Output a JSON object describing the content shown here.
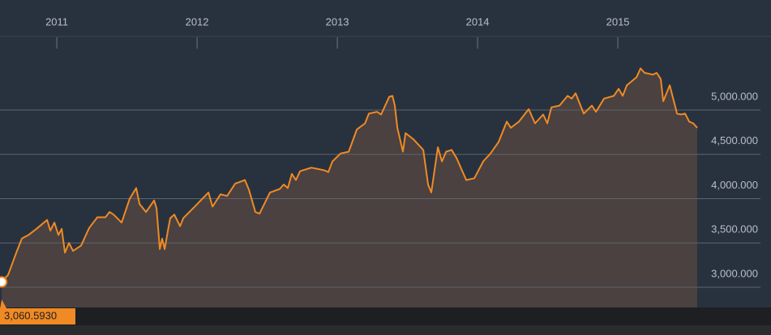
{
  "chart_data": {
    "type": "area",
    "x": [
      2010.607,
      2010.653,
      2010.711,
      2010.751,
      2010.798,
      2010.855,
      2010.931,
      2010.954,
      2010.983,
      2011.012,
      2011.035,
      2011.058,
      2011.087,
      2011.116,
      2011.173,
      2011.231,
      2011.289,
      2011.347,
      2011.376,
      2011.405,
      2011.462,
      2011.52,
      2011.566,
      2011.59,
      2011.636,
      2011.694,
      2011.711,
      2011.734,
      2011.751,
      2011.769,
      2011.792,
      2011.809,
      2011.838,
      2011.879,
      2011.902,
      2011.983,
      2012.081,
      2012.11,
      2012.168,
      2012.214,
      2012.272,
      2012.341,
      2012.37,
      2012.416,
      2012.445,
      2012.52,
      2012.59,
      2012.618,
      2012.647,
      2012.676,
      2012.705,
      2012.734,
      2012.815,
      2012.908,
      2012.936,
      2012.965,
      2013.023,
      2013.081,
      2013.139,
      2013.197,
      2013.225,
      2013.283,
      2013.312,
      2013.37,
      2013.393,
      2013.41,
      2013.428,
      2013.468,
      2013.486,
      2013.543,
      2013.613,
      2013.647,
      2013.67,
      2013.717,
      2013.746,
      2013.775,
      2013.815,
      2013.85,
      2013.919,
      2013.977,
      2014.04,
      2014.092,
      2014.15,
      2014.208,
      2014.237,
      2014.295,
      2014.364,
      2014.41,
      2014.468,
      2014.497,
      2014.526,
      2014.584,
      2014.642,
      2014.671,
      2014.699,
      2014.757,
      2014.815,
      2014.844,
      2014.902,
      2014.971,
      2015.006,
      2015.035,
      2015.064,
      2015.133,
      2015.162,
      2015.191,
      2015.249,
      2015.277,
      2015.306,
      2015.324,
      2015.37,
      2015.422,
      2015.451,
      2015.48,
      2015.509,
      2015.538,
      2015.566
    ],
    "series": [
      {
        "color": "#f08a24",
        "values": [
          3060.593,
          3140,
          3390,
          3550,
          3590,
          3660,
          3760,
          3640,
          3730,
          3590,
          3660,
          3390,
          3500,
          3410,
          3470,
          3670,
          3790,
          3790,
          3850,
          3820,
          3730,
          4000,
          4120,
          3940,
          3850,
          3980,
          3890,
          3430,
          3550,
          3430,
          3640,
          3780,
          3820,
          3690,
          3780,
          3910,
          4070,
          3910,
          4050,
          4030,
          4170,
          4210,
          4100,
          3850,
          3830,
          4070,
          4110,
          4160,
          4120,
          4280,
          4210,
          4310,
          4350,
          4320,
          4300,
          4420,
          4510,
          4530,
          4780,
          4850,
          4960,
          4980,
          4950,
          5150,
          5160,
          5050,
          4800,
          4530,
          4740,
          4670,
          4550,
          4160,
          4070,
          4580,
          4420,
          4530,
          4550,
          4460,
          4210,
          4230,
          4420,
          4510,
          4640,
          4870,
          4800,
          4870,
          5010,
          4850,
          4950,
          4850,
          5030,
          5050,
          5160,
          5130,
          5190,
          4960,
          5050,
          4980,
          5130,
          5160,
          5240,
          5160,
          5280,
          5370,
          5470,
          5420,
          5400,
          5420,
          5350,
          5100,
          5280,
          4960,
          4950,
          4960,
          4870,
          4850,
          4800
        ]
      }
    ],
    "marker": {
      "value": 3060.593,
      "label": "3,060.5930"
    },
    "xlim": [
      2010.595,
      2016.092
    ],
    "xticks": [
      2011,
      2012,
      2013,
      2014,
      2015
    ],
    "ylim": [
      2772,
      5676
    ],
    "yticks": [
      {
        "value": 3000,
        "label": "3,000.000"
      },
      {
        "value": 3500,
        "label": "3,500.000"
      },
      {
        "value": 4000,
        "label": "4,000.000"
      },
      {
        "value": 4500,
        "label": "4,500.000"
      },
      {
        "value": 5000,
        "label": "5,000.000"
      }
    ],
    "grid": true
  }
}
